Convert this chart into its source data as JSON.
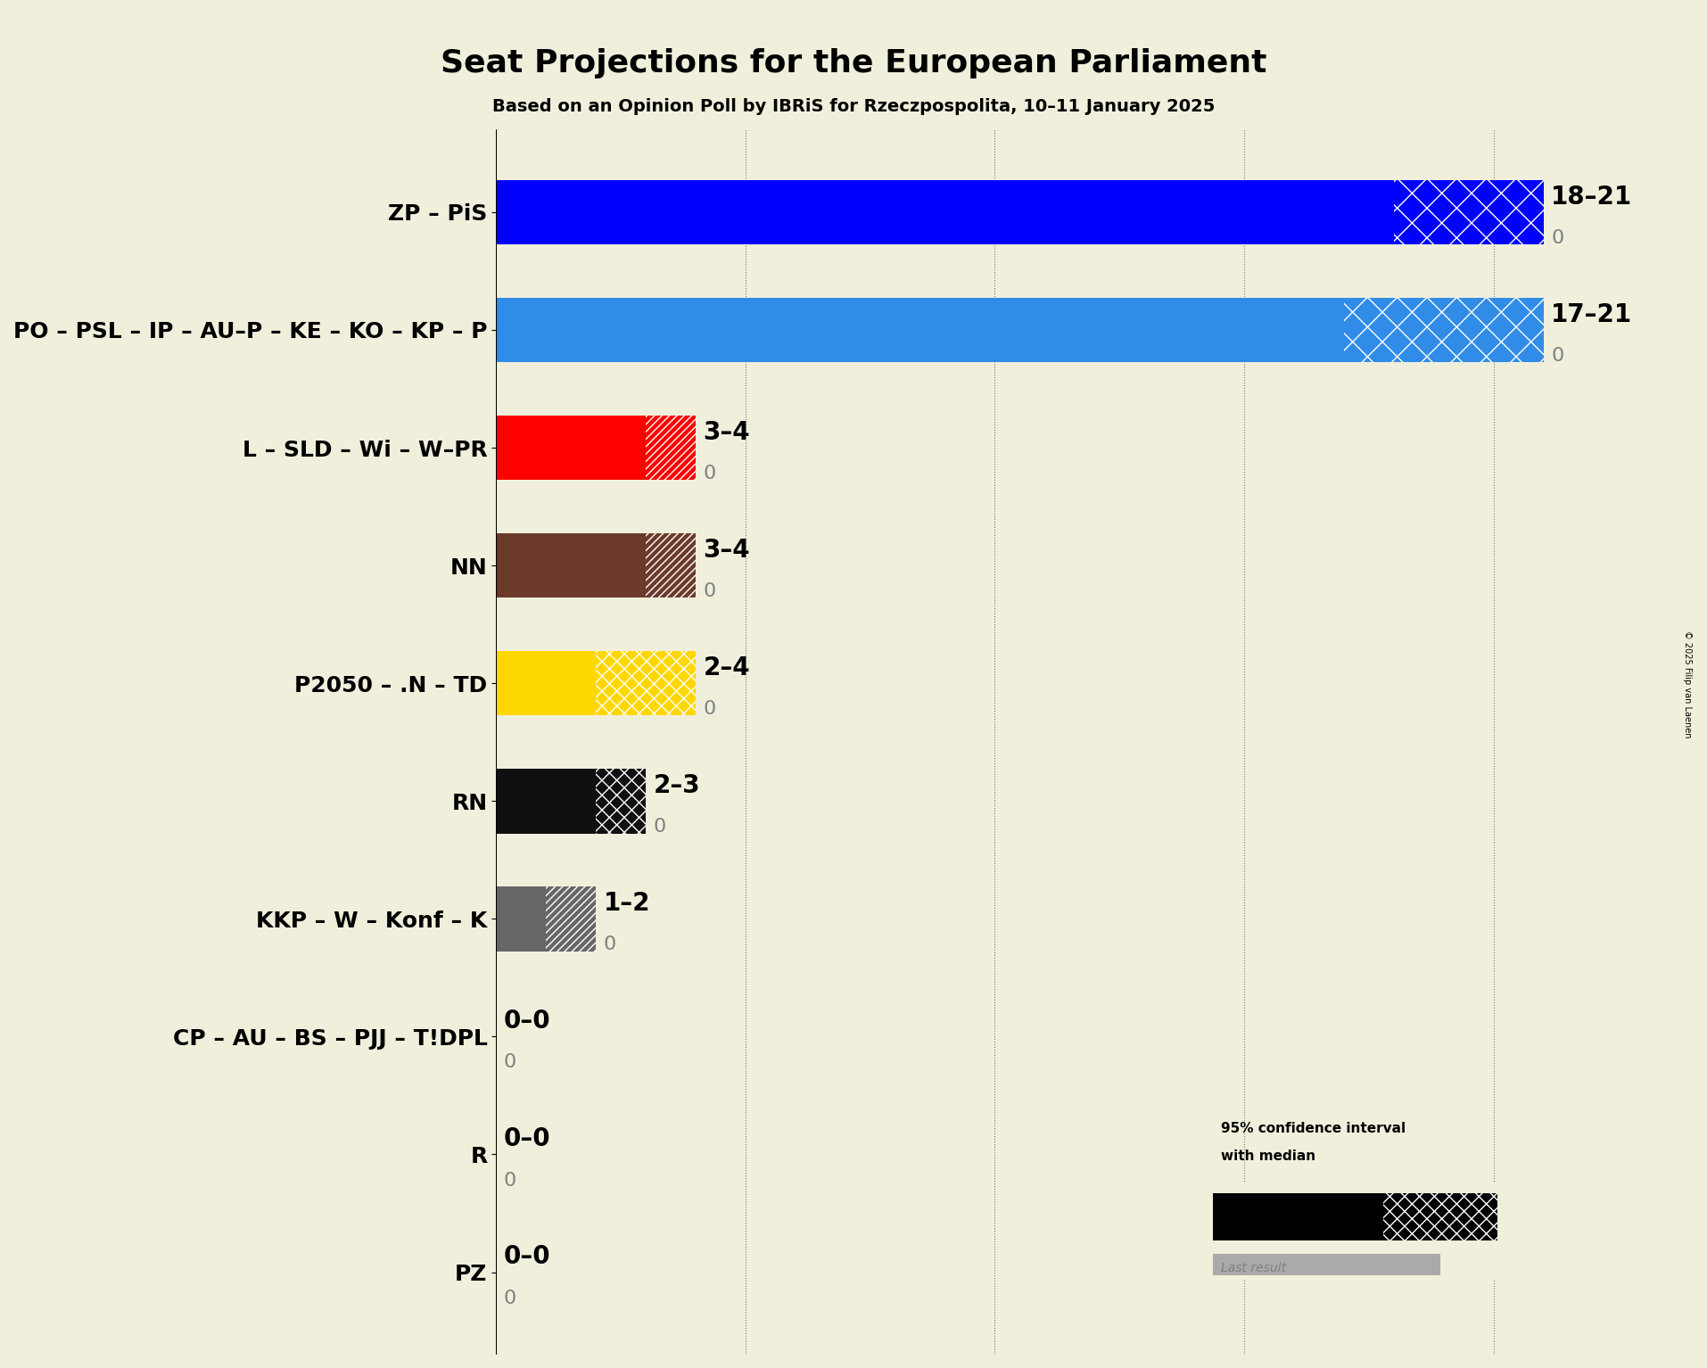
{
  "title": "Seat Projections for the European Parliament",
  "subtitle": "Based on an Opinion Poll by IBRiS for Rzeczpospolita, 10–11 January 2025",
  "copyright": "© 2025 Filip van Laenen",
  "background_color": "#f0efdc",
  "parties": [
    {
      "name": "ZP – PiS",
      "min": 18,
      "max": 21,
      "median": 18,
      "last": 0,
      "color": "#0000ff",
      "hatch": "x",
      "label": "18–21"
    },
    {
      "name": "PO – PSL – IP – AU–P – KE – KO – KP – P",
      "min": 17,
      "max": 21,
      "median": 17,
      "last": 0,
      "color": "#318ce7",
      "hatch": "x",
      "label": "17–21"
    },
    {
      "name": "L – SLD – Wi – W–PR",
      "min": 3,
      "max": 4,
      "median": 3,
      "last": 0,
      "color": "#ff0000",
      "hatch": "////",
      "label": "3–4"
    },
    {
      "name": "NN",
      "min": 3,
      "max": 4,
      "median": 3,
      "last": 0,
      "color": "#6b3a2a",
      "hatch": "////",
      "label": "3–4"
    },
    {
      "name": "P2050 – .N – TD",
      "min": 2,
      "max": 4,
      "median": 2,
      "last": 0,
      "color": "#ffd700",
      "hatch": "xx",
      "label": "2–4"
    },
    {
      "name": "RN",
      "min": 2,
      "max": 3,
      "median": 2,
      "last": 0,
      "color": "#101010",
      "hatch": "xx",
      "label": "2–3"
    },
    {
      "name": "KKP – W – Konf – K",
      "min": 1,
      "max": 2,
      "median": 1,
      "last": 0,
      "color": "#666666",
      "hatch": "////",
      "label": "1–2"
    },
    {
      "name": "CP – AU – BS – PJJ – T!DPL",
      "min": 0,
      "max": 0,
      "median": 0,
      "last": 0,
      "color": "#888888",
      "hatch": "x",
      "label": "0–0"
    },
    {
      "name": "R",
      "min": 0,
      "max": 0,
      "median": 0,
      "last": 0,
      "color": "#888888",
      "hatch": "x",
      "label": "0–0"
    },
    {
      "name": "PZ",
      "min": 0,
      "max": 0,
      "median": 0,
      "last": 0,
      "color": "#888888",
      "hatch": "x",
      "label": "0–0"
    }
  ],
  "xlim": [
    0,
    23
  ],
  "grid_values": [
    5,
    10,
    15,
    20
  ],
  "title_fontsize": 26,
  "subtitle_fontsize": 14,
  "label_fontsize": 20,
  "ytick_fontsize": 18
}
